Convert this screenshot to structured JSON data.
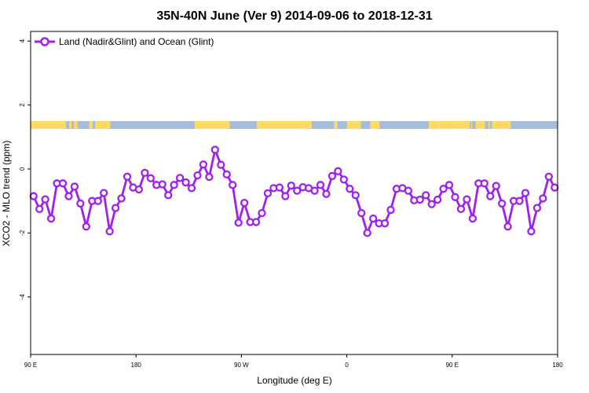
{
  "chart_data": {
    "type": "line",
    "title": "35N-40N June (Ver 9)   2014-09-06 to 2018-12-31",
    "xlabel": "Longitude (deg E)",
    "ylabel": "XCO2 - MLO trend (ppm)",
    "x_ticks": [
      {
        "value": 90,
        "label": "90 E"
      },
      {
        "value": 180,
        "label": "180"
      },
      {
        "value": 270,
        "label": "90 W"
      },
      {
        "value": 360,
        "label": "0"
      },
      {
        "value": 450,
        "label": "90 E"
      },
      {
        "value": 540,
        "label": "180"
      }
    ],
    "y_ticks": [
      {
        "value": 4,
        "label": "4"
      },
      {
        "value": 2,
        "label": "2"
      },
      {
        "value": 0,
        "label": "0"
      },
      {
        "value": -2,
        "label": "-2"
      },
      {
        "value": -4,
        "label": "-4"
      }
    ],
    "xlim": [
      90,
      540
    ],
    "ylim": [
      -5.8,
      4.3
    ],
    "grid": false,
    "legend_position": "top-left",
    "line_color": "#a020f0",
    "land_color": "#ffd966",
    "ocean_color": "#a6bddb",
    "series": [
      {
        "name": "Land (Nadir&Glint) and Ocean (Glint)",
        "x": [
          92.5,
          97.5,
          102.5,
          107.5,
          112.5,
          117.5,
          122.5,
          127.5,
          132.5,
          137.5,
          142.5,
          147.5,
          152.5,
          157.5,
          162.5,
          167.5,
          172.5,
          177.5,
          182.5,
          187.5,
          192.5,
          197.5,
          202.5,
          207.5,
          212.5,
          217.5,
          222.5,
          227.5,
          232.5,
          237.5,
          242.5,
          247.5,
          252.5,
          257.5,
          262.5,
          267.5,
          272.5,
          277.5,
          282.5,
          287.5,
          292.5,
          297.5,
          302.5,
          307.5,
          312.5,
          317.5,
          322.5,
          327.5,
          332.5,
          337.5,
          342.5,
          347.5,
          352.5,
          357.5,
          362.5,
          367.5,
          372.5,
          377.5,
          382.5,
          387.5,
          392.5,
          397.5,
          402.5,
          407.5,
          412.5,
          417.5,
          422.5,
          427.5,
          432.5,
          437.5,
          442.5,
          447.5,
          452.5,
          457.5,
          462.5,
          467.5,
          472.5,
          477.5,
          482.5,
          487.5,
          492.5,
          497.5,
          502.5,
          507.5,
          512.5,
          517.5,
          522.5,
          527.5,
          532.5,
          537.5
        ],
        "values": [
          -0.85,
          -1.25,
          -0.95,
          -1.55,
          -0.45,
          -0.45,
          -0.85,
          -0.55,
          -1.08,
          -1.8,
          -1.0,
          -1.0,
          -0.75,
          -1.95,
          -1.22,
          -0.92,
          -0.24,
          -0.58,
          -0.64,
          -0.12,
          -0.29,
          -0.5,
          -0.48,
          -0.82,
          -0.5,
          -0.28,
          -0.42,
          -0.6,
          -0.2,
          0.14,
          -0.25,
          0.6,
          0.13,
          -0.17,
          -0.5,
          -1.68,
          -1.06,
          -1.66,
          -1.66,
          -1.38,
          -0.76,
          -0.6,
          -0.58,
          -0.85,
          -0.52,
          -0.68,
          -0.57,
          -0.6,
          -0.68,
          -0.5,
          -0.78,
          -0.22,
          -0.07,
          -0.33,
          -0.62,
          -0.82,
          -1.38,
          -2.0,
          -1.55,
          -1.7,
          -1.7,
          -1.28,
          -0.62,
          -0.6,
          -0.68,
          -0.98,
          -0.96,
          -0.82,
          -1.1,
          -0.96,
          -0.62,
          -0.5,
          -0.88,
          -1.25,
          -0.95,
          -1.55,
          -0.45,
          -0.45,
          -0.85,
          -0.53,
          -1.08,
          -1.8,
          -1.0,
          -1.0,
          -0.75,
          -1.95,
          -1.22,
          -0.92,
          -0.24,
          -0.58
        ]
      }
    ]
  },
  "land_segments": [
    [
      90,
      120
    ],
    [
      123,
      125
    ],
    [
      127,
      130
    ],
    [
      140,
      143
    ],
    [
      145,
      150
    ],
    [
      147.5,
      152
    ],
    [
      154,
      158
    ],
    [
      152,
      155
    ],
    [
      230,
      260
    ],
    [
      283,
      330
    ],
    [
      349,
      352
    ],
    [
      360,
      372
    ],
    [
      380,
      388
    ],
    [
      430,
      450
    ],
    [
      450,
      465
    ],
    [
      466,
      467
    ],
    [
      470,
      478
    ],
    [
      481,
      482
    ],
    [
      484,
      490
    ],
    [
      490,
      500
    ]
  ]
}
